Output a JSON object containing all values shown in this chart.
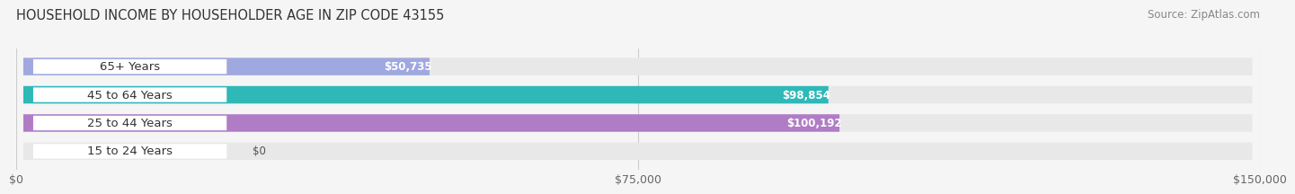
{
  "title": "HOUSEHOLD INCOME BY HOUSEHOLDER AGE IN ZIP CODE 43155",
  "source": "Source: ZipAtlas.com",
  "categories": [
    "15 to 24 Years",
    "25 to 44 Years",
    "45 to 64 Years",
    "65+ Years"
  ],
  "values": [
    0,
    100192,
    98854,
    50735
  ],
  "bar_colors": [
    "#a8b8e8",
    "#b07cc6",
    "#2eb8b8",
    "#a0a8e0"
  ],
  "bar_bg_color": "#e8e8e8",
  "x_max": 150000,
  "x_ticks": [
    0,
    75000,
    150000
  ],
  "x_tick_labels": [
    "$0",
    "$75,000",
    "$150,000"
  ],
  "value_labels": [
    "$0",
    "$100,192",
    "$98,854",
    "$50,735"
  ],
  "fig_bg_color": "#f5f5f5",
  "title_fontsize": 10.5,
  "source_fontsize": 8.5,
  "tick_fontsize": 9,
  "bar_label_fontsize": 8.5,
  "cat_label_fontsize": 9.5,
  "bar_height": 0.62
}
